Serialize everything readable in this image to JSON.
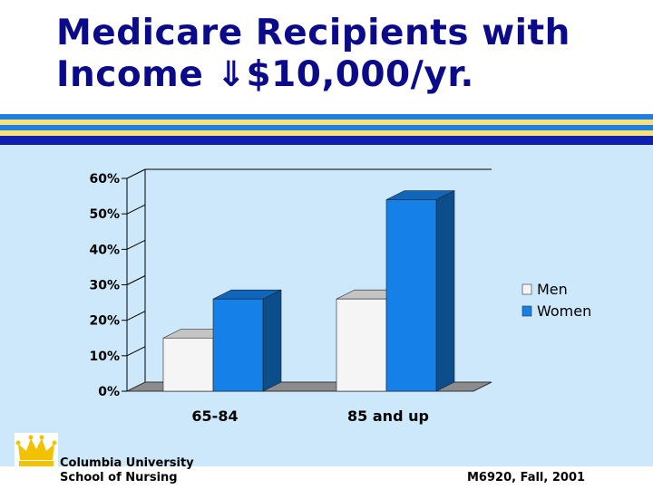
{
  "slide": {
    "title_line1": "Medicare Recipients with",
    "title_line2": "Income ⇓$10,000/yr.",
    "footer_institution_line1": "Columbia University",
    "footer_institution_line2": "School of Nursing",
    "footer_course": "M6920, Fall, 2001",
    "logo_icon": "crown-icon"
  },
  "colors": {
    "title": "#0a0a8a",
    "background_panel": "#cce8fa",
    "stripe_blue": "#1f7fe0",
    "stripe_yellow": "#f5e07a",
    "stripe_navy": "#0f1fb0",
    "men": "#f5f5f5",
    "women": "#1480e8",
    "logo": "#f2c200"
  },
  "chart_data": {
    "type": "bar",
    "title": "",
    "xlabel": "",
    "ylabel": "",
    "categories": [
      "65-84",
      "85 and up"
    ],
    "series": [
      {
        "name": "Men",
        "values": [
          15,
          26
        ],
        "color": "#f5f5f5"
      },
      {
        "name": "Women",
        "values": [
          26,
          54
        ],
        "color": "#1480e8"
      }
    ],
    "ylim": [
      0,
      60
    ],
    "yticks": [
      "0%",
      "10%",
      "20%",
      "30%",
      "40%",
      "50%",
      "60%"
    ],
    "ytick_values": [
      0,
      10,
      20,
      30,
      40,
      50,
      60
    ],
    "grid": true,
    "legend_position": "right",
    "three_d": true
  }
}
